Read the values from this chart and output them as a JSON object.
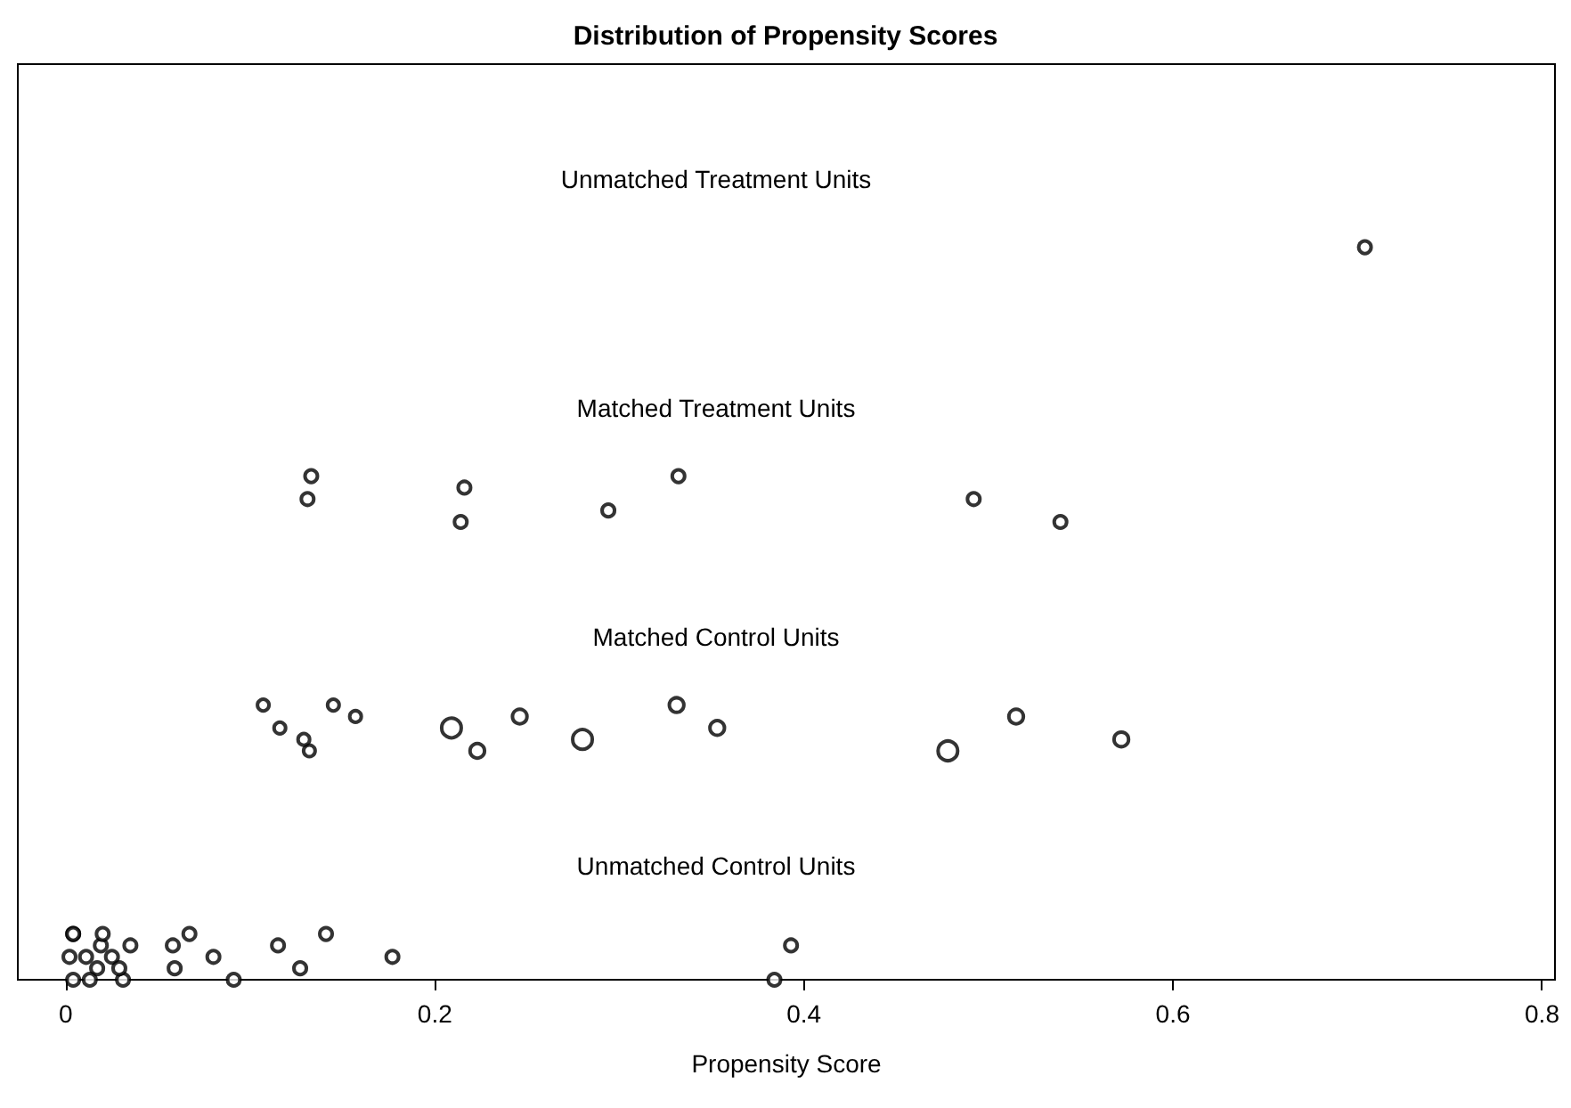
{
  "chart_data": {
    "type": "scatter",
    "orientation": "horizontal",
    "title": "Distribution of Propensity Scores",
    "xlabel": "Propensity Score",
    "xlim": [
      -0.026,
      0.807
    ],
    "xticks": [
      0,
      0.2,
      0.4,
      0.6,
      0.8
    ],
    "categories": [
      "Unmatched Treatment Units",
      "Matched Treatment Units",
      "Matched Control Units",
      "Unmatched Control Units"
    ],
    "grid": false,
    "marker": "circle",
    "series": [
      {
        "color": "#000000",
        "x": [
          "Unmatched Treatment Units"
        ],
        "values": [
          0.704
        ]
      },
      {
        "color": "#000000",
        "x": [
          "Matched Treatment Units",
          "Matched Treatment Units",
          "Matched Treatment Units",
          "Matched Treatment Units",
          "Matched Treatment Units",
          "Matched Treatment Units",
          "Matched Treatment Units",
          "Matched Treatment Units"
        ],
        "values": [
          0.133,
          0.131,
          0.214,
          0.216,
          0.294,
          0.332,
          0.492,
          0.539
        ]
      },
      {
        "type": "bubble",
        "color": "#000000",
        "x": [
          "Matched Control Units",
          "Matched Control Units",
          "Matched Control Units",
          "Matched Control Units",
          "Matched Control Units",
          "Matched Control Units",
          "Matched Control Units",
          "Matched Control Units",
          "Matched Control Units",
          "Matched Control Units",
          "Matched Control Units",
          "Matched Control Units",
          "Matched Control Units",
          "Matched Control Units",
          "Matched Control Units"
        ],
        "values": [
          0.107,
          0.116,
          0.132,
          0.157,
          0.129,
          0.145,
          0.209,
          0.223,
          0.246,
          0.28,
          0.331,
          0.353,
          0.478,
          0.515,
          0.572
        ],
        "sizes": [
          0.35,
          0.35,
          0.35,
          0.35,
          0.35,
          0.35,
          1,
          0.55,
          0.55,
          1,
          0.55,
          0.55,
          1,
          0.55,
          0.55
        ]
      },
      {
        "color": "#000000",
        "x": [
          "Unmatched Control Units",
          "Unmatched Control Units",
          "Unmatched Control Units",
          "Unmatched Control Units",
          "Unmatched Control Units",
          "Unmatched Control Units",
          "Unmatched Control Units",
          "Unmatched Control Units",
          "Unmatched Control Units",
          "Unmatched Control Units",
          "Unmatched Control Units",
          "Unmatched Control Units",
          "Unmatched Control Units",
          "Unmatched Control Units",
          "Unmatched Control Units",
          "Unmatched Control Units",
          "Unmatched Control Units",
          "Unmatched Control Units",
          "Unmatched Control Units",
          "Unmatched Control Units",
          "Unmatched Control Units",
          "Unmatched Control Units",
          "Unmatched Control Units",
          "Unmatched Control Units"
        ],
        "values": [
          0.004,
          0.002,
          0.004,
          0.019,
          0.017,
          0.02,
          0.025,
          0.031,
          0.035,
          0.029,
          0.004,
          0.011,
          0.013,
          0.058,
          0.059,
          0.067,
          0.08,
          0.091,
          0.115,
          0.127,
          0.141,
          0.177,
          0.384,
          0.393
        ]
      }
    ]
  }
}
